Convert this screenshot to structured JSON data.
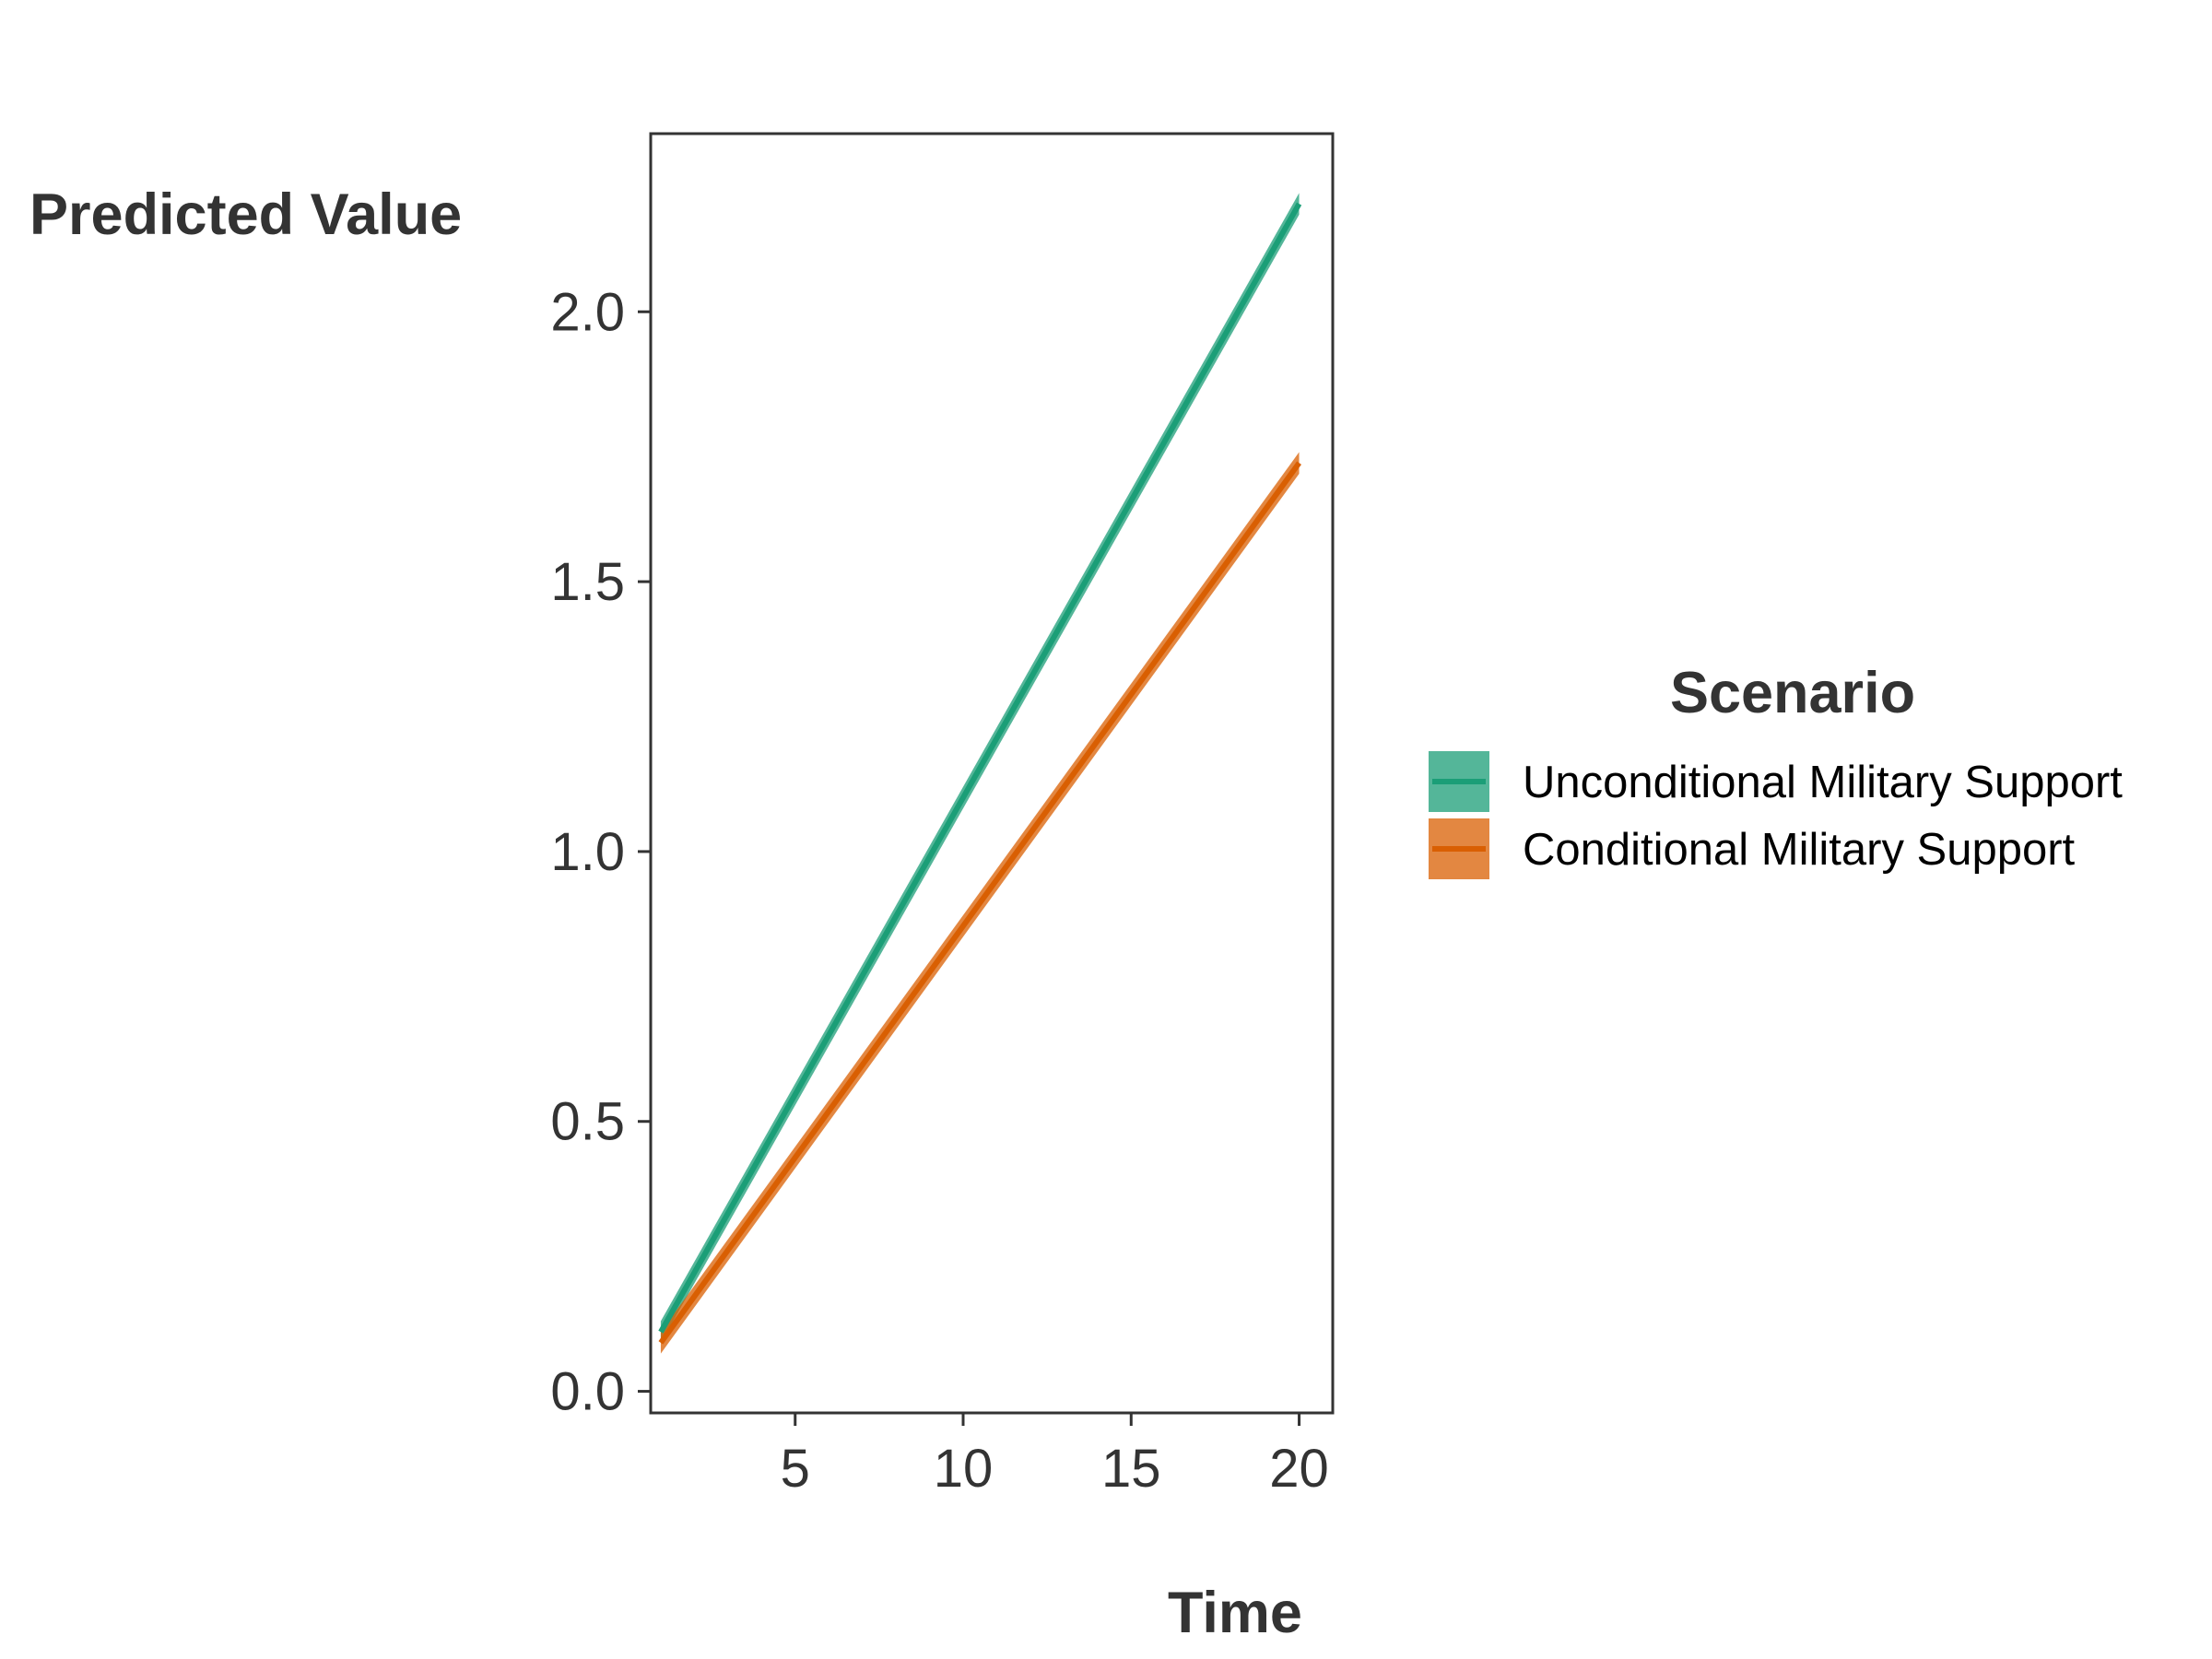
{
  "chart_data": {
    "type": "line",
    "xlabel": "Time",
    "ylabel": "Predicted Value",
    "xlim": [
      0.7,
      21.0
    ],
    "ylim": [
      -0.04,
      2.33
    ],
    "x_ticks": [
      5,
      10,
      15,
      20
    ],
    "x_tick_labels": [
      "5",
      "10",
      "15",
      "20"
    ],
    "y_ticks": [
      0.0,
      0.5,
      1.0,
      1.5,
      2.0
    ],
    "y_tick_labels": [
      "0.0",
      "0.5",
      "1.0",
      "1.5",
      "2.0"
    ],
    "grid": false,
    "legend": {
      "title": "Scenario",
      "position": "right"
    },
    "series": [
      {
        "name": "Unconditional Military Support",
        "color": "#1b9e77",
        "band_color": "#1b9e77",
        "x": [
          1,
          20
        ],
        "y": [
          0.11,
          2.2
        ],
        "lower": [
          0.09,
          2.18
        ],
        "upper": [
          0.13,
          2.22
        ]
      },
      {
        "name": "Conditional Military Support",
        "color": "#d95f02",
        "band_color": "#d95f02",
        "x": [
          1,
          20
        ],
        "y": [
          0.09,
          1.72
        ],
        "lower": [
          0.07,
          1.7
        ],
        "upper": [
          0.11,
          1.74
        ]
      }
    ]
  }
}
